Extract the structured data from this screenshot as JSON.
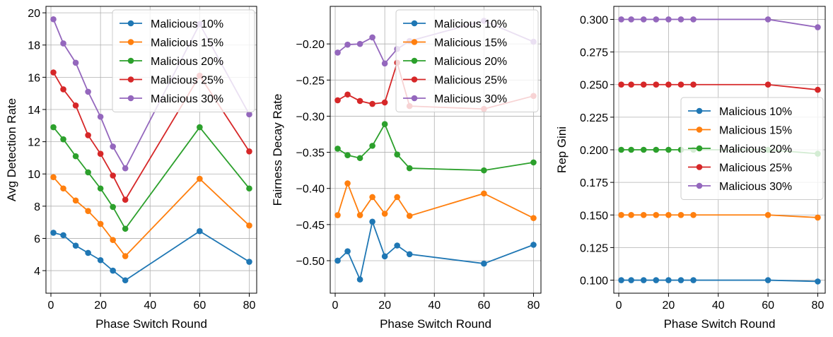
{
  "colors": [
    "#1f77b4",
    "#ff7f0e",
    "#2ca02c",
    "#d62728",
    "#9467bd"
  ],
  "chart_data": [
    {
      "type": "line",
      "xlabel": "Phase Switch Round",
      "ylabel": "Avg Detection Rate",
      "x": [
        1,
        5,
        10,
        15,
        20,
        25,
        30,
        60,
        80
      ],
      "xlim": [
        -2,
        83
      ],
      "ylim": [
        2.6,
        20.4
      ],
      "xticks": [
        0,
        20,
        40,
        60,
        80
      ],
      "xtick_labels": [
        "0",
        "20",
        "40",
        "60",
        "80"
      ],
      "yticks": [
        4,
        6,
        8,
        10,
        12,
        14,
        16,
        18,
        20
      ],
      "ytick_labels": [
        "4",
        "6",
        "8",
        "10",
        "12",
        "14",
        "16",
        "18",
        "20"
      ],
      "grid": true,
      "legend_position": "top-right",
      "series": [
        {
          "name": "Malicious 10%",
          "values": [
            6.35,
            6.2,
            5.55,
            5.1,
            4.65,
            4.0,
            3.4,
            6.45,
            4.55
          ]
        },
        {
          "name": "Malicious 15%",
          "values": [
            9.8,
            9.1,
            8.35,
            7.7,
            6.9,
            5.9,
            4.9,
            9.7,
            6.8
          ]
        },
        {
          "name": "Malicious 20%",
          "values": [
            12.9,
            12.15,
            11.1,
            10.1,
            9.1,
            7.95,
            6.6,
            12.9,
            9.1
          ]
        },
        {
          "name": "Malicious 25%",
          "values": [
            16.3,
            15.25,
            14.25,
            12.4,
            11.25,
            9.9,
            8.4,
            16.1,
            11.4
          ]
        },
        {
          "name": "Malicious 30%",
          "values": [
            19.6,
            18.1,
            16.9,
            15.1,
            13.55,
            11.7,
            10.35,
            19.3,
            13.7
          ]
        }
      ]
    },
    {
      "type": "line",
      "xlabel": "Phase Switch Round",
      "ylabel": "Fairness Decay Rate",
      "x": [
        1,
        5,
        10,
        15,
        20,
        25,
        30,
        60,
        80
      ],
      "xlim": [
        -2,
        83
      ],
      "ylim": [
        -0.545,
        -0.148
      ],
      "xticks": [
        0,
        20,
        40,
        60,
        80
      ],
      "xtick_labels": [
        "0",
        "20",
        "40",
        "60",
        "80"
      ],
      "yticks": [
        -0.5,
        -0.45,
        -0.4,
        -0.35,
        -0.3,
        -0.25,
        -0.2
      ],
      "ytick_labels": [
        "−0.50",
        "−0.45",
        "−0.40",
        "−0.35",
        "−0.30",
        "−0.25",
        "−0.20"
      ],
      "grid": true,
      "legend_position": "top-right",
      "series": [
        {
          "name": "Malicious 10%",
          "values": [
            -0.5,
            -0.487,
            -0.526,
            -0.446,
            -0.494,
            -0.479,
            -0.491,
            -0.504,
            -0.478
          ]
        },
        {
          "name": "Malicious 15%",
          "values": [
            -0.437,
            -0.393,
            -0.437,
            -0.412,
            -0.435,
            -0.412,
            -0.438,
            -0.407,
            -0.441
          ]
        },
        {
          "name": "Malicious 20%",
          "values": [
            -0.345,
            -0.354,
            -0.358,
            -0.341,
            -0.311,
            -0.353,
            -0.372,
            -0.375,
            -0.364
          ]
        },
        {
          "name": "Malicious 25%",
          "values": [
            -0.278,
            -0.27,
            -0.279,
            -0.283,
            -0.281,
            -0.226,
            -0.286,
            -0.29,
            -0.272
          ]
        },
        {
          "name": "Malicious 30%",
          "values": [
            -0.212,
            -0.201,
            -0.2,
            -0.191,
            -0.227,
            -0.207,
            -0.196,
            -0.168,
            -0.197
          ]
        }
      ]
    },
    {
      "type": "line",
      "xlabel": "Phase Switch Round",
      "ylabel": "Rep Gini",
      "x": [
        1,
        5,
        10,
        15,
        20,
        25,
        30,
        60,
        80
      ],
      "xlim": [
        -2,
        83
      ],
      "ylim": [
        0.09,
        0.31
      ],
      "xticks": [
        0,
        20,
        40,
        60,
        80
      ],
      "xtick_labels": [
        "0",
        "20",
        "40",
        "60",
        "80"
      ],
      "yticks": [
        0.1,
        0.125,
        0.15,
        0.175,
        0.2,
        0.225,
        0.25,
        0.275,
        0.3
      ],
      "ytick_labels": [
        "0.100",
        "0.125",
        "0.150",
        "0.175",
        "0.200",
        "0.225",
        "0.250",
        "0.275",
        "0.300"
      ],
      "grid": true,
      "legend_position": "center-right",
      "series": [
        {
          "name": "Malicious 10%",
          "values": [
            0.1,
            0.1,
            0.1,
            0.1,
            0.1,
            0.1,
            0.1,
            0.1,
            0.099
          ]
        },
        {
          "name": "Malicious 15%",
          "values": [
            0.15,
            0.15,
            0.15,
            0.15,
            0.15,
            0.15,
            0.15,
            0.15,
            0.148
          ]
        },
        {
          "name": "Malicious 20%",
          "values": [
            0.2,
            0.2,
            0.2,
            0.2,
            0.2,
            0.2,
            0.2,
            0.2,
            0.197
          ]
        },
        {
          "name": "Malicious 25%",
          "values": [
            0.25,
            0.25,
            0.25,
            0.25,
            0.25,
            0.25,
            0.25,
            0.25,
            0.246
          ]
        },
        {
          "name": "Malicious 30%",
          "values": [
            0.3,
            0.3,
            0.3,
            0.3,
            0.3,
            0.3,
            0.3,
            0.3,
            0.294
          ]
        }
      ]
    }
  ]
}
